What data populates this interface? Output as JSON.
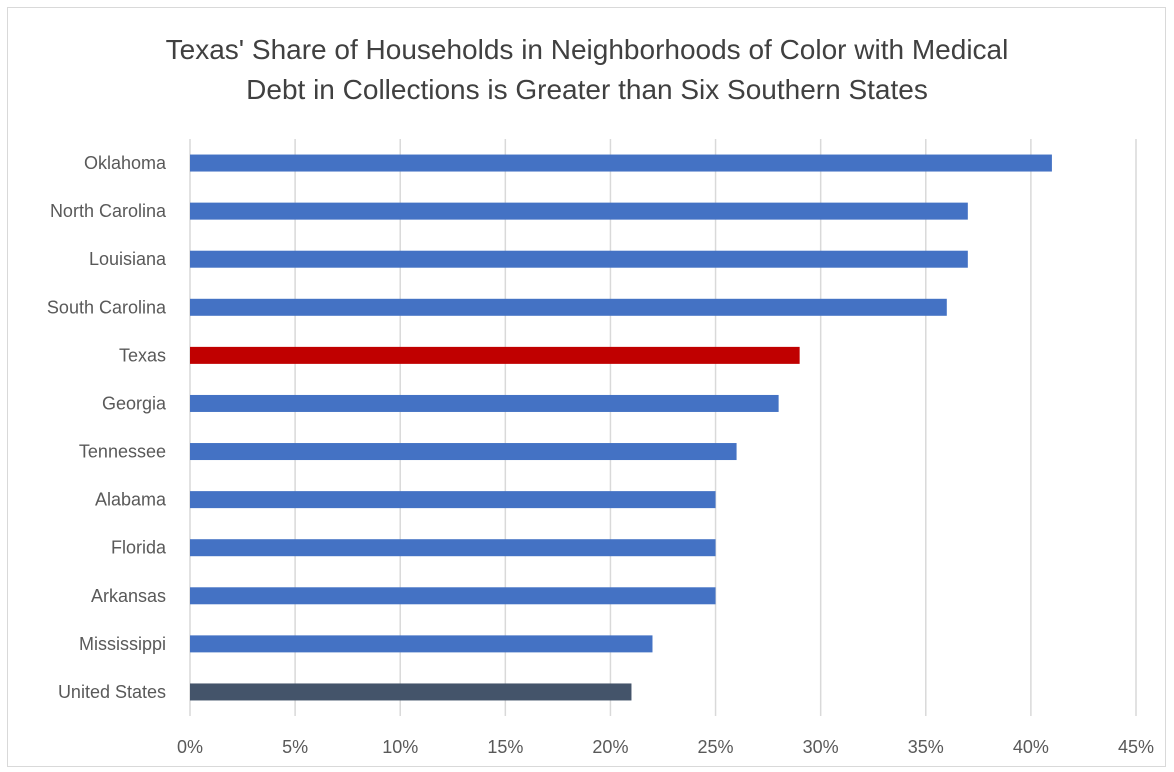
{
  "chart_data": {
    "type": "bar",
    "orientation": "horizontal",
    "title_lines": [
      "Texas' Share of Households in Neighborhoods of Color with Medical",
      "Debt in Collections is Greater than Six Southern States"
    ],
    "xlabel": "",
    "ylabel": "",
    "categories": [
      "Oklahoma",
      "North Carolina",
      "Louisiana",
      "South Carolina",
      "Texas",
      "Georgia",
      "Tennessee",
      "Alabama",
      "Florida",
      "Arkansas",
      "Mississippi",
      "United States"
    ],
    "values": [
      41,
      37,
      37,
      36,
      29,
      28,
      26,
      25,
      25,
      25,
      22,
      21
    ],
    "bar_colors": [
      "#4472c4",
      "#4472c4",
      "#4472c4",
      "#4472c4",
      "#c00000",
      "#4472c4",
      "#4472c4",
      "#4472c4",
      "#4472c4",
      "#4472c4",
      "#4472c4",
      "#44546a"
    ],
    "xlim": [
      0,
      45
    ],
    "x_ticks": [
      0,
      5,
      10,
      15,
      20,
      25,
      30,
      35,
      40,
      45
    ],
    "x_tick_labels": [
      "0%",
      "5%",
      "10%",
      "15%",
      "20%",
      "25%",
      "30%",
      "35%",
      "40%",
      "45%"
    ],
    "grid": "vertical",
    "legend": "none",
    "colors": {
      "default_bar": "#4472c4",
      "highlight_bar": "#c00000",
      "national_bar": "#44546a",
      "gridline": "#d9d9d9",
      "text": "#595959",
      "title": "#404040"
    }
  }
}
